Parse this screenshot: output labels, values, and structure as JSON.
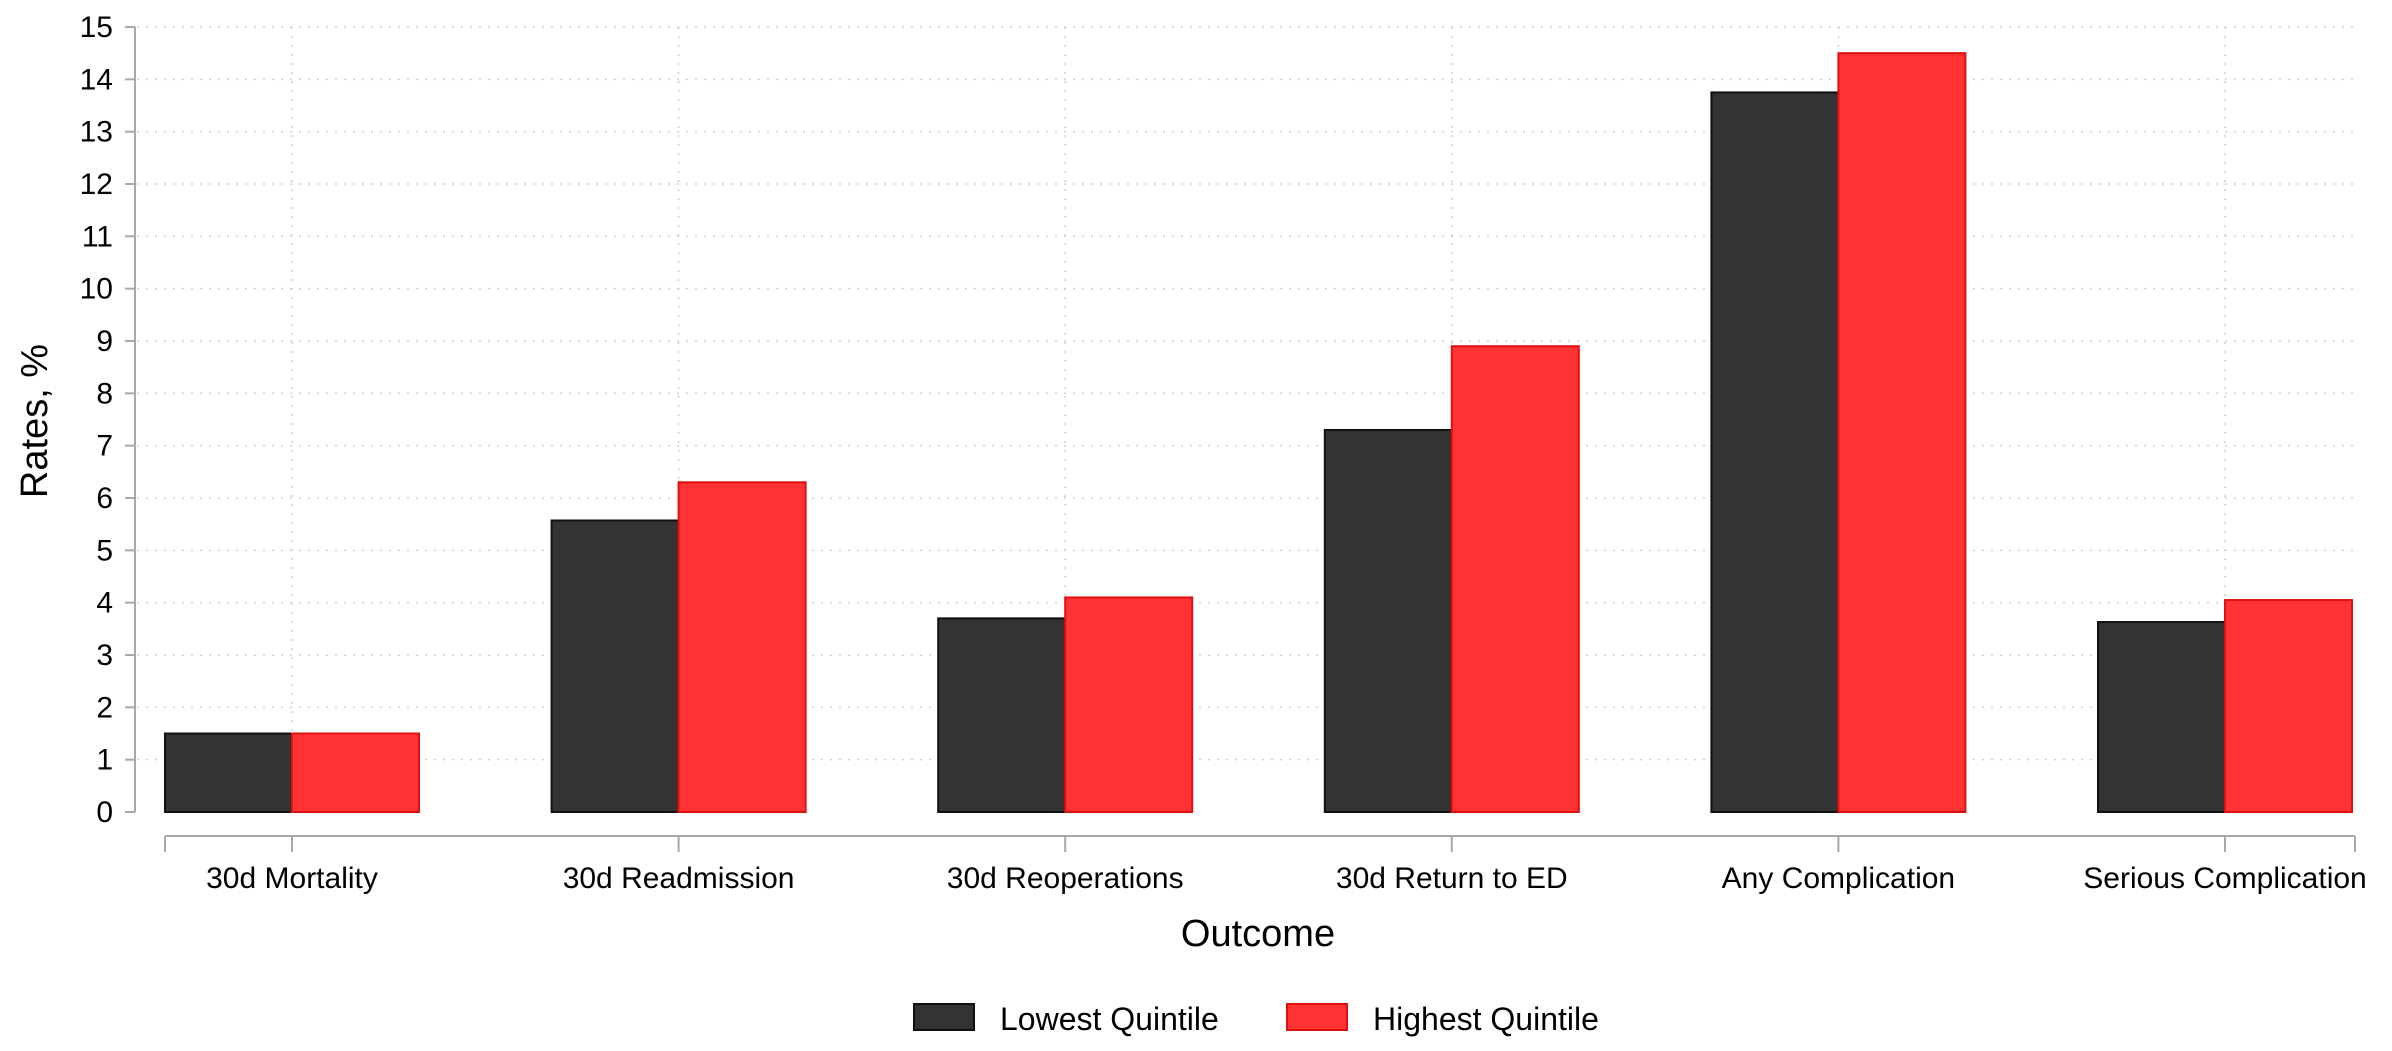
{
  "chart_data": {
    "type": "bar",
    "categories": [
      "30d Mortality",
      "30d Readmission",
      "30d Reoperations",
      "30d Return to ED",
      "Any Complication",
      "Serious Complication"
    ],
    "series": [
      {
        "name": "Lowest Quintile",
        "values": [
          1.5,
          5.57,
          3.7,
          7.3,
          13.75,
          3.63
        ],
        "color": "#333333"
      },
      {
        "name": "Highest Quintile",
        "values": [
          1.5,
          6.3,
          4.1,
          8.9,
          14.5,
          4.05
        ],
        "color": "#ff3333"
      }
    ],
    "title": "",
    "xlabel": "Outcome",
    "ylabel": "Rates, %",
    "ylim": [
      0,
      15
    ],
    "yticks": [
      "0",
      "1",
      "2",
      "3",
      "4",
      "5",
      "6",
      "7",
      "8",
      "9",
      "10",
      "11",
      "12",
      "13",
      "14",
      "15"
    ],
    "grid": true,
    "legend_position": "bottom-center"
  }
}
